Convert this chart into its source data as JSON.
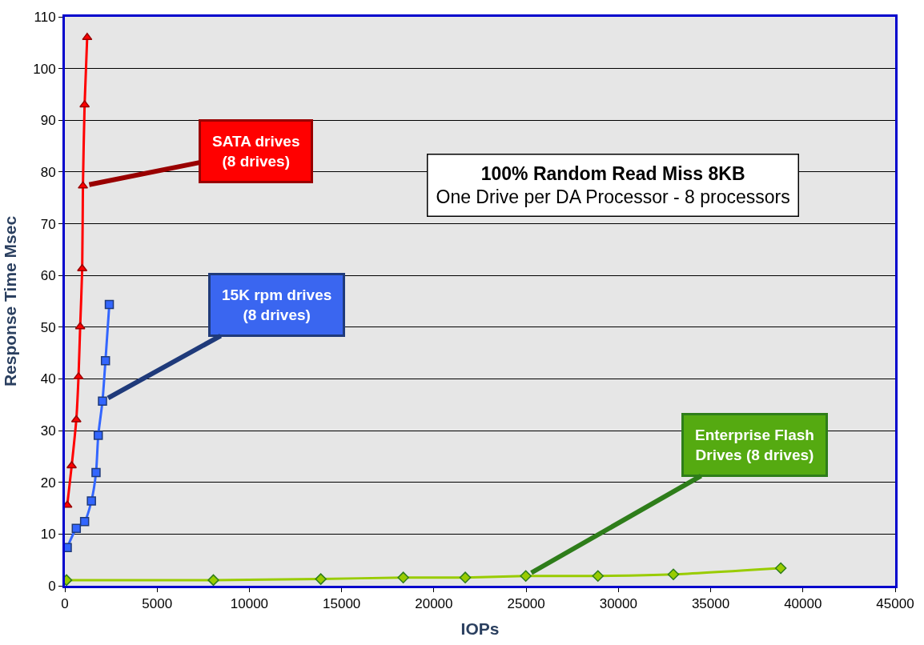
{
  "chart_data": {
    "type": "line",
    "title": "100% Random Read Miss 8KB",
    "subtitle": "One Drive per DA Processor - 8 processors",
    "xlabel": "IOPs",
    "ylabel": "Response Time Msec",
    "xlim": [
      0,
      45000
    ],
    "xticks": [
      0,
      5000,
      10000,
      15000,
      20000,
      25000,
      30000,
      35000,
      40000,
      45000
    ],
    "ylim": [
      0,
      110
    ],
    "yticks": [
      0,
      10,
      20,
      30,
      40,
      50,
      60,
      70,
      80,
      90,
      100,
      110
    ],
    "grid": "y",
    "legend": false,
    "series": [
      {
        "name": "SATA drives (8 drives)",
        "color": "#ff0000",
        "marker": "triangle",
        "x": [
          130,
          370,
          620,
          740,
          830,
          940,
          980,
          1070,
          1210
        ],
        "values": [
          15.6,
          23.2,
          32.1,
          40.4,
          50.1,
          61.3,
          77.3,
          93.0,
          106.0
        ]
      },
      {
        "name": "15K rpm drives (8 drives)",
        "color": "#3366ff",
        "marker": "square",
        "x": [
          130,
          620,
          1070,
          1440,
          1690,
          1810,
          2040,
          2200,
          2410
        ],
        "values": [
          7.4,
          11.1,
          12.4,
          16.4,
          21.9,
          29.1,
          35.7,
          43.5,
          54.4
        ]
      },
      {
        "name": "Enterprise Flash Drives (8 drives)",
        "color": "#99cc00",
        "marker": "diamond",
        "x": [
          90,
          8050,
          13870,
          18340,
          21700,
          24980,
          28890,
          32980,
          38800
        ],
        "values": [
          1.1,
          1.1,
          1.3,
          1.6,
          1.6,
          1.9,
          1.9,
          2.2,
          3.4
        ]
      }
    ]
  }
}
